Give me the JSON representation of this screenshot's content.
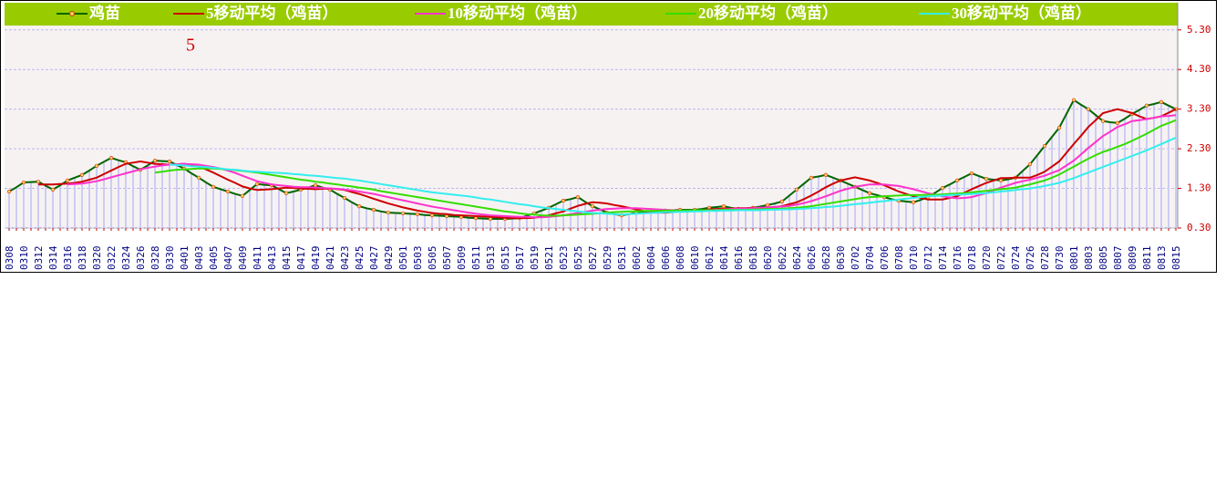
{
  "chart_data": {
    "type": "line",
    "annotation": "5",
    "categories": [
      "0308",
      null,
      "0310",
      null,
      "0312",
      null,
      "0314",
      null,
      "0316",
      null,
      "0318",
      null,
      "0320",
      null,
      "0322",
      null,
      "0324",
      null,
      "0326",
      null,
      "0328",
      null,
      "0330",
      null,
      "0401",
      null,
      "0403",
      null,
      "0405",
      null,
      "0407",
      null,
      "0409",
      null,
      "0411",
      null,
      "0413",
      null,
      "0415",
      null,
      "0417",
      null,
      "0419",
      null,
      "0421",
      null,
      "0423",
      null,
      "0425",
      null,
      "0427",
      null,
      "0429",
      null,
      "0501",
      null,
      "0503",
      null,
      "0505",
      null,
      "0507",
      null,
      "0509",
      null,
      "0511",
      null,
      "0513",
      null,
      "0515",
      null,
      "0517",
      null,
      "0519",
      null,
      "0521",
      null,
      "0523",
      null,
      "0525",
      null,
      "0527",
      null,
      "0529",
      null,
      "0531",
      null,
      "0602",
      null,
      "0604",
      null,
      "0606",
      null,
      "0608",
      null,
      "0610",
      null,
      "0612",
      null,
      "0614",
      null,
      "0616",
      null,
      "0618",
      null,
      "0620",
      null,
      "0622",
      null,
      "0624",
      null,
      "0626",
      null,
      "0628",
      null,
      "0630",
      null,
      "0702",
      null,
      "0704",
      null,
      "0706",
      null,
      "0708",
      null,
      "0710",
      null,
      "0712",
      null,
      "0714",
      null,
      "0716",
      null,
      "0718",
      null,
      "0720",
      null,
      "0722",
      null,
      "0724",
      null,
      "0726",
      null,
      "0728",
      null,
      "0730",
      null,
      "0801",
      null,
      "0803",
      null,
      "0805",
      null,
      "0807",
      null,
      "0809",
      null,
      "0811",
      null,
      "0813",
      null,
      "0815"
    ],
    "series": [
      {
        "name": "鸡苗",
        "color": "#006600",
        "markers": true,
        "values": [
          1.22,
          1.33,
          1.45,
          1.46,
          1.47,
          1.37,
          1.27,
          1.38,
          1.5,
          1.57,
          1.64,
          1.75,
          1.87,
          1.97,
          2.07,
          2.01,
          1.96,
          1.86,
          1.77,
          1.88,
          2.0,
          1.99,
          1.98,
          1.89,
          1.8,
          1.68,
          1.57,
          1.45,
          1.34,
          1.28,
          1.22,
          1.16,
          1.11,
          1.26,
          1.41,
          1.39,
          1.38,
          1.28,
          1.18,
          1.22,
          1.27,
          1.32,
          1.38,
          1.32,
          1.27,
          1.16,
          1.06,
          0.95,
          0.85,
          0.8,
          0.76,
          0.72,
          0.69,
          0.68,
          0.67,
          0.66,
          0.65,
          0.63,
          0.62,
          0.61,
          0.6,
          0.59,
          0.58,
          0.56,
          0.55,
          0.54,
          0.53,
          0.53,
          0.53,
          0.54,
          0.55,
          0.61,
          0.67,
          0.74,
          0.81,
          0.9,
          0.99,
          1.03,
          1.08,
          0.96,
          0.85,
          0.77,
          0.69,
          0.65,
          0.62,
          0.65,
          0.69,
          0.7,
          0.71,
          0.72,
          0.74,
          0.75,
          0.76,
          0.76,
          0.76,
          0.78,
          0.81,
          0.83,
          0.85,
          0.81,
          0.78,
          0.79,
          0.81,
          0.84,
          0.88,
          0.92,
          0.97,
          1.12,
          1.27,
          1.42,
          1.57,
          1.6,
          1.64,
          1.57,
          1.5,
          1.42,
          1.34,
          1.26,
          1.18,
          1.13,
          1.08,
          1.03,
          0.99,
          0.97,
          0.95,
          1.01,
          1.08,
          1.19,
          1.31,
          1.4,
          1.5,
          1.59,
          1.68,
          1.61,
          1.54,
          1.52,
          1.5,
          1.53,
          1.57,
          1.74,
          1.91,
          2.14,
          2.37,
          2.6,
          2.83,
          3.18,
          3.53,
          3.41,
          3.3,
          3.15,
          3.0,
          2.97,
          2.95,
          3.06,
          3.18,
          3.28,
          3.39,
          3.43,
          3.48,
          3.39,
          3.3
        ]
      },
      {
        "name": "5移动平均（鸡苗）",
        "color": "#cc0000",
        "values": [
          null,
          null,
          null,
          null,
          1.4,
          1.4,
          1.4,
          1.41,
          1.42,
          1.44,
          1.47,
          1.52,
          1.57,
          1.66,
          1.75,
          1.84,
          1.92,
          1.95,
          1.98,
          1.95,
          1.92,
          1.91,
          1.9,
          1.91,
          1.92,
          1.88,
          1.85,
          1.78,
          1.7,
          1.61,
          1.52,
          1.44,
          1.35,
          1.3,
          1.26,
          1.27,
          1.28,
          1.3,
          1.32,
          1.31,
          1.3,
          1.29,
          1.28,
          1.29,
          1.3,
          1.28,
          1.26,
          1.21,
          1.16,
          1.1,
          1.04,
          0.98,
          0.92,
          0.87,
          0.82,
          0.78,
          0.74,
          0.71,
          0.68,
          0.66,
          0.65,
          0.63,
          0.62,
          0.61,
          0.6,
          0.59,
          0.58,
          0.57,
          0.56,
          0.55,
          0.55,
          0.55,
          0.56,
          0.59,
          0.62,
          0.67,
          0.72,
          0.79,
          0.86,
          0.91,
          0.95,
          0.94,
          0.92,
          0.88,
          0.85,
          0.81,
          0.77,
          0.73,
          0.7,
          0.69,
          0.69,
          0.7,
          0.72,
          0.73,
          0.74,
          0.75,
          0.77,
          0.78,
          0.79,
          0.79,
          0.8,
          0.8,
          0.81,
          0.81,
          0.82,
          0.83,
          0.85,
          0.9,
          0.95,
          1.03,
          1.12,
          1.22,
          1.33,
          1.42,
          1.5,
          1.54,
          1.58,
          1.54,
          1.5,
          1.44,
          1.38,
          1.3,
          1.22,
          1.16,
          1.1,
          1.06,
          1.02,
          1.02,
          1.02,
          1.06,
          1.1,
          1.19,
          1.28,
          1.36,
          1.44,
          1.5,
          1.56,
          1.56,
          1.57,
          1.57,
          1.57,
          1.64,
          1.72,
          1.85,
          1.98,
          2.2,
          2.42,
          2.63,
          2.85,
          3.02,
          3.2,
          3.25,
          3.3,
          3.25,
          3.2,
          3.12,
          3.05,
          3.08,
          3.12,
          3.21,
          3.3
        ]
      },
      {
        "name": "10移动平均（鸡苗）",
        "color": "#ff33cc",
        "values": [
          null,
          null,
          null,
          null,
          null,
          null,
          null,
          null,
          1.4,
          1.41,
          1.42,
          1.45,
          1.48,
          1.53,
          1.58,
          1.63,
          1.68,
          1.73,
          1.78,
          1.82,
          1.85,
          1.88,
          1.9,
          1.91,
          1.92,
          1.91,
          1.9,
          1.87,
          1.84,
          1.8,
          1.75,
          1.69,
          1.62,
          1.55,
          1.48,
          1.44,
          1.4,
          1.38,
          1.36,
          1.34,
          1.33,
          1.33,
          1.32,
          1.31,
          1.3,
          1.29,
          1.27,
          1.25,
          1.22,
          1.19,
          1.16,
          1.12,
          1.08,
          1.04,
          1.0,
          0.96,
          0.92,
          0.88,
          0.84,
          0.81,
          0.78,
          0.75,
          0.72,
          0.69,
          0.66,
          0.64,
          0.62,
          0.61,
          0.6,
          0.59,
          0.58,
          0.58,
          0.57,
          0.57,
          0.58,
          0.6,
          0.62,
          0.65,
          0.68,
          0.71,
          0.74,
          0.76,
          0.78,
          0.79,
          0.8,
          0.8,
          0.8,
          0.79,
          0.78,
          0.77,
          0.76,
          0.75,
          0.74,
          0.74,
          0.74,
          0.74,
          0.75,
          0.76,
          0.77,
          0.78,
          0.79,
          0.79,
          0.8,
          0.81,
          0.82,
          0.83,
          0.84,
          0.86,
          0.89,
          0.93,
          0.98,
          1.04,
          1.1,
          1.17,
          1.24,
          1.29,
          1.34,
          1.37,
          1.4,
          1.4,
          1.4,
          1.38,
          1.36,
          1.32,
          1.28,
          1.23,
          1.18,
          1.14,
          1.1,
          1.07,
          1.05,
          1.06,
          1.08,
          1.13,
          1.18,
          1.25,
          1.32,
          1.38,
          1.44,
          1.48,
          1.52,
          1.57,
          1.62,
          1.69,
          1.76,
          1.88,
          2.0,
          2.16,
          2.32,
          2.47,
          2.62,
          2.73,
          2.85,
          2.92,
          3.0,
          3.02,
          3.05,
          3.08,
          3.12,
          3.13,
          3.15
        ]
      },
      {
        "name": "20移动平均（鸡苗）",
        "color": "#33dd00",
        "values": [
          null,
          null,
          null,
          null,
          null,
          null,
          null,
          null,
          null,
          null,
          null,
          null,
          null,
          null,
          null,
          null,
          null,
          null,
          null,
          null,
          1.7,
          1.72,
          1.75,
          1.77,
          1.78,
          1.79,
          1.8,
          1.8,
          1.8,
          1.79,
          1.78,
          1.76,
          1.74,
          1.72,
          1.7,
          1.67,
          1.64,
          1.61,
          1.58,
          1.55,
          1.52,
          1.5,
          1.47,
          1.45,
          1.42,
          1.4,
          1.37,
          1.35,
          1.32,
          1.3,
          1.27,
          1.23,
          1.2,
          1.17,
          1.14,
          1.11,
          1.08,
          1.05,
          1.02,
          0.99,
          0.96,
          0.93,
          0.9,
          0.87,
          0.84,
          0.81,
          0.78,
          0.75,
          0.72,
          0.7,
          0.67,
          0.65,
          0.64,
          0.62,
          0.61,
          0.61,
          0.62,
          0.63,
          0.64,
          0.65,
          0.66,
          0.67,
          0.69,
          0.7,
          0.71,
          0.72,
          0.72,
          0.73,
          0.73,
          0.73,
          0.74,
          0.74,
          0.74,
          0.74,
          0.75,
          0.75,
          0.75,
          0.75,
          0.76,
          0.76,
          0.76,
          0.76,
          0.77,
          0.77,
          0.78,
          0.78,
          0.79,
          0.8,
          0.81,
          0.83,
          0.85,
          0.88,
          0.91,
          0.94,
          0.97,
          1.0,
          1.03,
          1.06,
          1.08,
          1.09,
          1.1,
          1.11,
          1.12,
          1.13,
          1.13,
          1.13,
          1.14,
          1.14,
          1.15,
          1.16,
          1.17,
          1.18,
          1.2,
          1.22,
          1.24,
          1.26,
          1.28,
          1.3,
          1.32,
          1.36,
          1.4,
          1.45,
          1.5,
          1.57,
          1.65,
          1.75,
          1.85,
          1.95,
          2.05,
          2.14,
          2.22,
          2.28,
          2.35,
          2.42,
          2.5,
          2.59,
          2.68,
          2.78,
          2.88,
          2.95,
          3.02
        ]
      },
      {
        "name": "30移动平均（鸡苗）",
        "color": "#33eeee",
        "values": [
          null,
          null,
          null,
          null,
          null,
          null,
          null,
          null,
          null,
          null,
          null,
          null,
          null,
          null,
          null,
          null,
          null,
          null,
          null,
          null,
          null,
          null,
          1.9,
          1.89,
          1.88,
          1.86,
          1.85,
          1.84,
          1.82,
          1.8,
          1.78,
          1.77,
          1.75,
          1.73,
          1.72,
          1.71,
          1.7,
          1.69,
          1.68,
          1.66,
          1.65,
          1.63,
          1.62,
          1.6,
          1.58,
          1.56,
          1.55,
          1.52,
          1.5,
          1.47,
          1.44,
          1.41,
          1.38,
          1.35,
          1.32,
          1.29,
          1.26,
          1.23,
          1.2,
          1.18,
          1.16,
          1.14,
          1.12,
          1.1,
          1.07,
          1.04,
          1.02,
          0.99,
          0.96,
          0.93,
          0.9,
          0.88,
          0.85,
          0.82,
          0.8,
          0.78,
          0.76,
          0.74,
          0.72,
          0.7,
          0.68,
          0.67,
          0.66,
          0.65,
          0.64,
          0.65,
          0.66,
          0.67,
          0.68,
          0.69,
          0.7,
          0.7,
          0.71,
          0.71,
          0.72,
          0.72,
          0.73,
          0.73,
          0.74,
          0.74,
          0.75,
          0.75,
          0.75,
          0.75,
          0.76,
          0.76,
          0.77,
          0.77,
          0.78,
          0.79,
          0.8,
          0.81,
          0.83,
          0.84,
          0.86,
          0.88,
          0.9,
          0.92,
          0.94,
          0.96,
          0.98,
          1.0,
          1.02,
          1.04,
          1.06,
          1.08,
          1.1,
          1.11,
          1.12,
          1.13,
          1.14,
          1.15,
          1.16,
          1.17,
          1.18,
          1.2,
          1.22,
          1.24,
          1.26,
          1.28,
          1.3,
          1.33,
          1.36,
          1.4,
          1.44,
          1.5,
          1.56,
          1.63,
          1.7,
          1.77,
          1.84,
          1.91,
          1.98,
          2.05,
          2.12,
          2.19,
          2.26,
          2.34,
          2.42,
          2.5,
          2.58
        ]
      }
    ],
    "ylim": [
      0.3,
      5.41
    ],
    "yticks": [
      {
        "value": 0.3,
        "label": "0.30"
      },
      {
        "value": 1.3,
        "label": "1.30"
      },
      {
        "value": 2.3,
        "label": "2.30"
      },
      {
        "value": 3.3,
        "label": "3.30"
      },
      {
        "value": 4.3,
        "label": "4.30"
      },
      {
        "value": 5.3,
        "label": "5.30"
      }
    ],
    "y_axis_side": "right",
    "grid": true,
    "bar_color": "#ccccf5",
    "legend": "top"
  }
}
